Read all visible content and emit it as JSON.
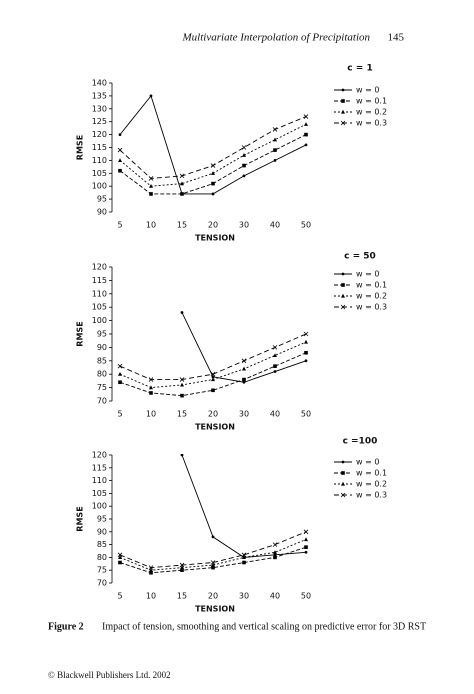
{
  "header": {
    "title": "Multivariate Interpolation of Precipitation",
    "page": "145"
  },
  "charts": [
    {
      "type": "line",
      "title": "c = 1",
      "xlabel": "TENSION",
      "ylabel": "RMSE",
      "categories": [
        "5",
        "10",
        "15",
        "20",
        "30",
        "40",
        "50"
      ],
      "ylim": [
        90,
        140
      ],
      "yticks": [
        90,
        95,
        100,
        105,
        110,
        115,
        120,
        125,
        130,
        135,
        140
      ],
      "series": [
        {
          "name": "w = 0",
          "color": "#000000",
          "values": [
            120,
            135,
            97,
            97,
            104,
            110,
            116
          ]
        },
        {
          "name": "w = 0.1",
          "color": "#000000",
          "values": [
            106,
            97,
            97,
            101,
            108,
            114,
            120
          ]
        },
        {
          "name": "w = 0.2",
          "color": "#000000",
          "values": [
            110,
            100,
            101,
            105,
            112,
            118,
            124
          ]
        },
        {
          "name": "w = 0.3",
          "color": "#000000",
          "values": [
            114,
            103,
            104,
            108,
            115,
            122,
            127
          ]
        }
      ]
    },
    {
      "type": "line",
      "title": "c = 50",
      "xlabel": "TENSION",
      "ylabel": "RMSE",
      "categories": [
        "5",
        "10",
        "15",
        "20",
        "30",
        "40",
        "50"
      ],
      "ylim": [
        70,
        120
      ],
      "yticks": [
        70,
        75,
        80,
        85,
        90,
        95,
        100,
        105,
        110,
        115,
        120
      ],
      "series": [
        {
          "name": "w = 0",
          "color": "#000000",
          "values": [
            null,
            null,
            103,
            79,
            77,
            81,
            85
          ]
        },
        {
          "name": "w = 0.1",
          "color": "#000000",
          "values": [
            77,
            73,
            72,
            74,
            78,
            83,
            88
          ]
        },
        {
          "name": "w = 0.2",
          "color": "#000000",
          "values": [
            80,
            75,
            76,
            78,
            82,
            87,
            92
          ]
        },
        {
          "name": "w = 0.3",
          "color": "#000000",
          "values": [
            83,
            78,
            78,
            80,
            85,
            90,
            95
          ]
        }
      ]
    },
    {
      "type": "line",
      "title": "c =100",
      "xlabel": "TENSION",
      "ylabel": "RMSE",
      "categories": [
        "5",
        "10",
        "15",
        "20",
        "30",
        "40",
        "50"
      ],
      "ylim": [
        70,
        120
      ],
      "yticks": [
        70,
        75,
        80,
        85,
        90,
        95,
        100,
        105,
        110,
        115,
        120
      ],
      "series": [
        {
          "name": "w = 0",
          "color": "#000000",
          "values": [
            null,
            null,
            120,
            88,
            80,
            81,
            82
          ]
        },
        {
          "name": "w = 0.1",
          "color": "#000000",
          "values": [
            78,
            74,
            75,
            76,
            78,
            80,
            84
          ]
        },
        {
          "name": "w = 0.2",
          "color": "#000000",
          "values": [
            80,
            75,
            76,
            77,
            80,
            82,
            87
          ]
        },
        {
          "name": "w = 0.3",
          "color": "#000000",
          "values": [
            81,
            76,
            77,
            78,
            81,
            85,
            90
          ]
        }
      ]
    }
  ],
  "caption": {
    "label": "Figure 2",
    "text": "Impact of tension, smoothing and vertical scaling on predictive error for 3D RST"
  },
  "footer": "© Blackwell Publishers Ltd. 2002"
}
